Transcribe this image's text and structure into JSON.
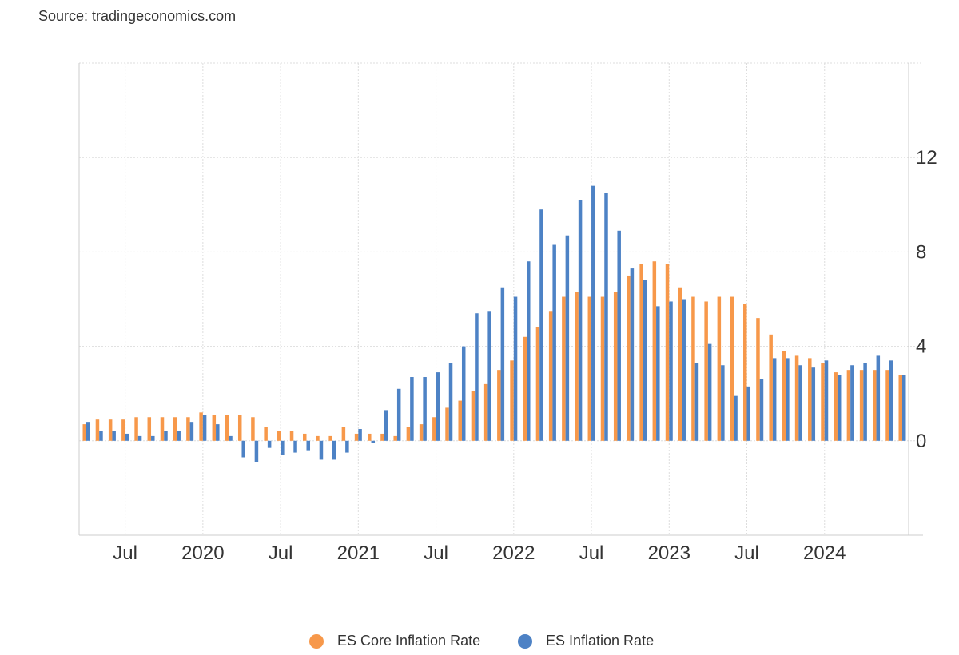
{
  "source": "Source: tradingeconomics.com",
  "chart_data": {
    "type": "bar",
    "x_start": "2019-04",
    "x_end": "2024-07",
    "ylim": [
      -4,
      16
    ],
    "y_ticks": [
      0,
      4,
      8,
      12
    ],
    "grid": true,
    "x_ticks": [
      {
        "label": "Jul",
        "date": "2019-07"
      },
      {
        "label": "2020",
        "date": "2020-01"
      },
      {
        "label": "Jul",
        "date": "2020-07"
      },
      {
        "label": "2021",
        "date": "2021-01"
      },
      {
        "label": "Jul",
        "date": "2021-07"
      },
      {
        "label": "2022",
        "date": "2022-01"
      },
      {
        "label": "Jul",
        "date": "2022-07"
      },
      {
        "label": "2023",
        "date": "2023-01"
      },
      {
        "label": "Jul",
        "date": "2023-07"
      },
      {
        "label": "2024",
        "date": "2024-01"
      }
    ],
    "categories": [
      "2019-04",
      "2019-05",
      "2019-06",
      "2019-07",
      "2019-08",
      "2019-09",
      "2019-10",
      "2019-11",
      "2019-12",
      "2020-01",
      "2020-02",
      "2020-03",
      "2020-04",
      "2020-05",
      "2020-06",
      "2020-07",
      "2020-08",
      "2020-09",
      "2020-10",
      "2020-11",
      "2020-12",
      "2021-01",
      "2021-02",
      "2021-03",
      "2021-04",
      "2021-05",
      "2021-06",
      "2021-07",
      "2021-08",
      "2021-09",
      "2021-10",
      "2021-11",
      "2021-12",
      "2022-01",
      "2022-02",
      "2022-03",
      "2022-04",
      "2022-05",
      "2022-06",
      "2022-07",
      "2022-08",
      "2022-09",
      "2022-10",
      "2022-11",
      "2022-12",
      "2023-01",
      "2023-02",
      "2023-03",
      "2023-04",
      "2023-05",
      "2023-06",
      "2023-07",
      "2023-08",
      "2023-09",
      "2023-10",
      "2023-11",
      "2023-12",
      "2024-01",
      "2024-02",
      "2024-03",
      "2024-04",
      "2024-05",
      "2024-06",
      "2024-07"
    ],
    "series": [
      {
        "name": "ES Core Inflation Rate",
        "color": "#f7984a",
        "values": [
          0.7,
          0.9,
          0.9,
          0.9,
          1.0,
          1.0,
          1.0,
          1.0,
          1.0,
          1.2,
          1.1,
          1.1,
          1.1,
          1.0,
          0.6,
          0.4,
          0.4,
          0.3,
          0.2,
          0.2,
          0.6,
          0.3,
          0.3,
          0.3,
          0.2,
          0.6,
          0.7,
          1.0,
          1.4,
          1.7,
          2.1,
          2.4,
          3.0,
          3.4,
          4.4,
          4.8,
          5.5,
          6.1,
          6.3,
          6.1,
          6.1,
          6.3,
          7.0,
          7.5,
          7.6,
          7.5,
          6.5,
          6.1,
          5.9,
          6.1,
          6.1,
          5.8,
          5.2,
          4.5,
          3.8,
          3.6,
          3.5,
          3.3,
          2.9,
          3.0,
          3.0,
          3.0,
          3.0,
          2.8
        ]
      },
      {
        "name": "ES Inflation Rate",
        "color": "#4d82c5",
        "values": [
          0.8,
          0.4,
          0.4,
          0.3,
          0.2,
          0.2,
          0.4,
          0.4,
          0.8,
          1.1,
          0.7,
          0.2,
          -0.7,
          -0.9,
          -0.3,
          -0.6,
          -0.5,
          -0.4,
          -0.8,
          -0.8,
          -0.5,
          0.5,
          -0.1,
          1.3,
          2.2,
          2.7,
          2.7,
          2.9,
          3.3,
          4.0,
          5.4,
          5.5,
          6.5,
          6.1,
          7.6,
          9.8,
          8.3,
          8.7,
          10.2,
          10.8,
          10.5,
          8.9,
          7.3,
          6.8,
          5.7,
          5.9,
          6.0,
          3.3,
          4.1,
          3.2,
          1.9,
          2.3,
          2.6,
          3.5,
          3.5,
          3.2,
          3.1,
          3.4,
          2.8,
          3.2,
          3.3,
          3.6,
          3.4,
          2.8
        ]
      }
    ]
  }
}
